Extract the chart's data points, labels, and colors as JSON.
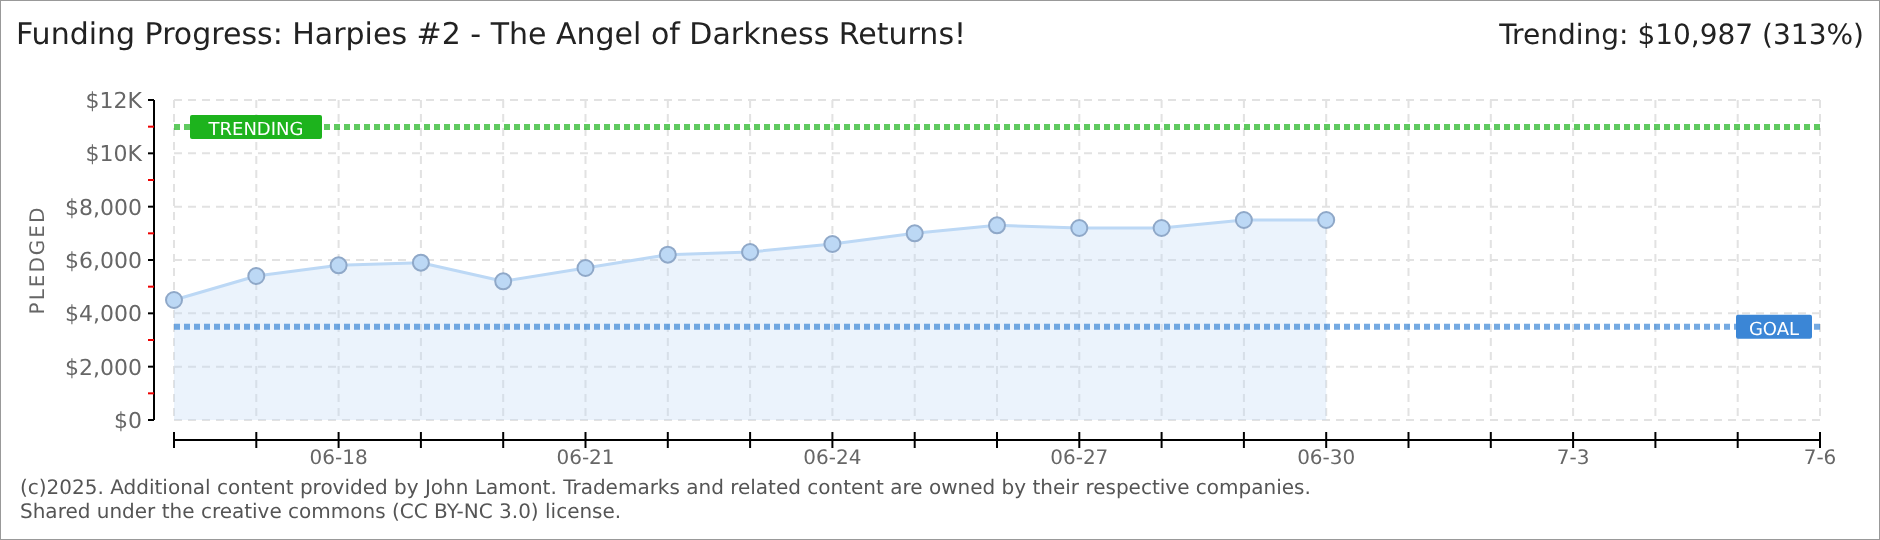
{
  "chart_data": {
    "type": "area",
    "title": "Funding Progress: Harpies #2 - The Angel of Darkness Returns!",
    "subtitle": "Trending: $10,987 (313%)",
    "ylabel": "PLEDGED",
    "x": [
      "--06-16",
      "--06-17",
      "--06-18",
      "--06-19",
      "--06-20",
      "--06-21",
      "--06-22",
      "--06-23",
      "--06-24",
      "--06-25",
      "--06-26",
      "--06-27",
      "--06-28",
      "--06-29",
      "--06-30"
    ],
    "series": [
      {
        "color": "#bcd8f5",
        "values": [
          4500,
          5400,
          5800,
          5900,
          5200,
          5700,
          6200,
          6300,
          6600,
          7000,
          7300,
          7200,
          7200,
          7500,
          7500
        ]
      }
    ],
    "xlim": [
      "--06-16",
      "--07-06"
    ],
    "xticks": [
      {
        "value": "--06-16",
        "label": null
      },
      {
        "value": "--06-17",
        "label": null
      },
      {
        "value": "--06-18",
        "label": "06-18"
      },
      {
        "value": "--06-19",
        "label": null
      },
      {
        "value": "--06-20",
        "label": null
      },
      {
        "value": "--06-21",
        "label": "06-21"
      },
      {
        "value": "--06-22",
        "label": null
      },
      {
        "value": "--06-23",
        "label": null
      },
      {
        "value": "--06-24",
        "label": "06-24"
      },
      {
        "value": "--06-25",
        "label": null
      },
      {
        "value": "--06-26",
        "label": null
      },
      {
        "value": "--06-27",
        "label": "06-27"
      },
      {
        "value": "--06-28",
        "label": null
      },
      {
        "value": "--06-29",
        "label": null
      },
      {
        "value": "--06-30",
        "label": "06-30"
      },
      {
        "value": "--07-01",
        "label": null
      },
      {
        "value": "--07-02",
        "label": null
      },
      {
        "value": "--07-03",
        "label": "7-3"
      },
      {
        "value": "--07-04",
        "label": null
      },
      {
        "value": "--07-05",
        "label": null
      },
      {
        "value": "--07-06",
        "label": "7-6"
      }
    ],
    "ylim": [
      0,
      12000
    ],
    "yticks": [
      {
        "value": 0,
        "label": "$0"
      },
      {
        "value": 1000,
        "label": null
      },
      {
        "value": 2000,
        "label": "$2,000"
      },
      {
        "value": 3000,
        "label": null
      },
      {
        "value": 4000,
        "label": "$4,000"
      },
      {
        "value": 5000,
        "label": null
      },
      {
        "value": 6000,
        "label": "$6,000"
      },
      {
        "value": 7000,
        "label": null
      },
      {
        "value": 8000,
        "label": "$8,000"
      },
      {
        "value": 9000,
        "label": null
      },
      {
        "value": 10000,
        "label": "$10K"
      },
      {
        "value": 11000,
        "label": null
      },
      {
        "value": 12000,
        "label": "$12K"
      }
    ],
    "ref_lines": [
      {
        "axis": "y",
        "value": 10987,
        "label": "TRENDING",
        "color": "#1db31d",
        "line_style": "dotted"
      },
      {
        "axis": "y",
        "value": 3500,
        "label": "GOAL",
        "color": "#3b86d6",
        "line_style": "dotted"
      }
    ],
    "annotations": [
      "(c)2025. Additional content provided by John Lamont. Trademarks and related content are owned by their respective companies.",
      "Shared under the creative commons (CC BY-NC 3.0) license."
    ],
    "grid": true,
    "marker": "circle"
  }
}
